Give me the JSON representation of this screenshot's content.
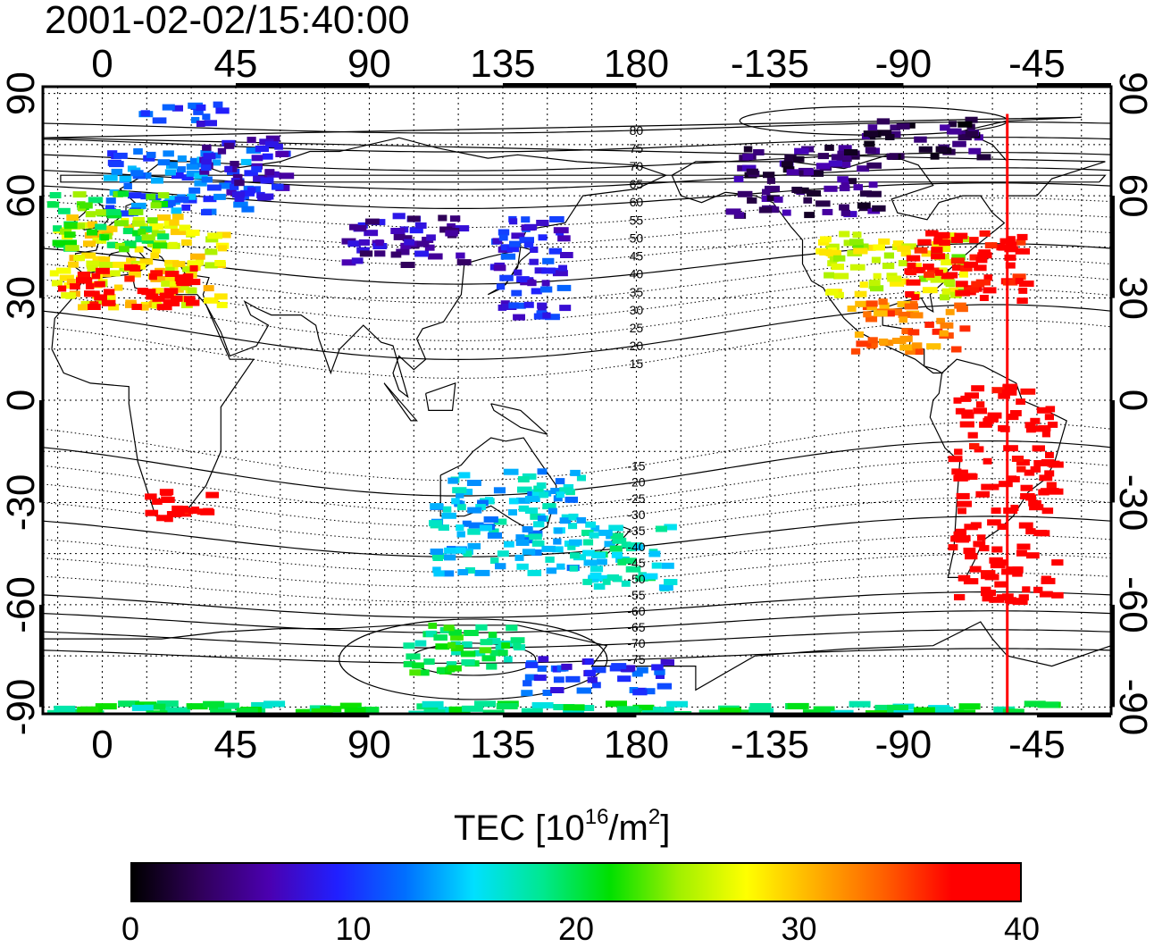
{
  "timestamp": "2001-02-02/15:40:00",
  "axes": {
    "lon_ticks": [
      0,
      45,
      90,
      135,
      180,
      -135,
      -90,
      -45
    ],
    "lon_tick_labels": [
      "0",
      "45",
      "90",
      "135",
      "180",
      "-135",
      "-90",
      "-45"
    ],
    "lat_ticks": [
      90,
      60,
      30,
      0,
      -30,
      -60,
      -90
    ],
    "lat_tick_labels": [
      "90",
      "60",
      "30",
      "0",
      "-30",
      "-60",
      "-90"
    ],
    "lon_range": [
      -20,
      340
    ],
    "lat_range": [
      -92,
      92
    ],
    "grid": true
  },
  "contours": {
    "labels": [
      "80",
      "75",
      "70",
      "65",
      "60",
      "55",
      "50",
      "45",
      "40",
      "35",
      "30",
      "25",
      "20",
      "15",
      "-15",
      "-20",
      "-25",
      "-30",
      "-35",
      "-40",
      "-45",
      "-50",
      "-55",
      "-60",
      "-65",
      "-70",
      "-75"
    ],
    "label_lon": 180
  },
  "terminator_lon": -55,
  "colorbar": {
    "title_main": "TEC  [10",
    "title_exp1": "16",
    "title_unit": "/m",
    "title_exp2": "2",
    "title_close": "]",
    "ticks": [
      "0",
      "10",
      "20",
      "30",
      "40"
    ],
    "range": [
      0,
      40
    ],
    "colors": [
      "#000000",
      "#30005a",
      "#4b00b0",
      "#2020ff",
      "#0070ff",
      "#00e0ff",
      "#00e890",
      "#00e000",
      "#a0f000",
      "#ffff00",
      "#ffb000",
      "#ff6000",
      "#ff0000",
      "#ff0000"
    ]
  },
  "chart_data": {
    "type": "heatmap",
    "xlabel": "",
    "ylabel": "",
    "colorbar_range": [
      0,
      40
    ],
    "regions": [
      {
        "lon": [
          -18,
          40
        ],
        "lat": [
          28,
          55
        ],
        "tec": 28
      },
      {
        "lon": [
          -15,
          30
        ],
        "lat": [
          28,
          40
        ],
        "tec": 39
      },
      {
        "lon": [
          0,
          50
        ],
        "lat": [
          55,
          75
        ],
        "tec": 12
      },
      {
        "lon": [
          -20,
          20
        ],
        "lat": [
          45,
          62
        ],
        "tec": 22
      },
      {
        "lon": [
          30,
          60
        ],
        "lat": [
          60,
          78
        ],
        "tec": 7
      },
      {
        "lon": [
          10,
          35
        ],
        "lat": [
          -35,
          -25
        ],
        "tec": 39
      },
      {
        "lon": [
          130,
          155
        ],
        "lat": [
          25,
          55
        ],
        "tec": 9
      },
      {
        "lon": [
          80,
          120
        ],
        "lat": [
          40,
          55
        ],
        "tec": 6
      },
      {
        "lon": [
          210,
          260
        ],
        "lat": [
          55,
          75
        ],
        "tec": 4
      },
      {
        "lon": [
          240,
          290
        ],
        "lat": [
          30,
          50
        ],
        "tec": 26
      },
      {
        "lon": [
          270,
          310
        ],
        "lat": [
          30,
          50
        ],
        "tec": 38
      },
      {
        "lon": [
          250,
          290
        ],
        "lat": [
          15,
          30
        ],
        "tec": 33
      },
      {
        "lon": [
          285,
          320
        ],
        "lat": [
          -60,
          5
        ],
        "tec": 39
      },
      {
        "lon": [
          160,
          190
        ],
        "lat": [
          -55,
          -35
        ],
        "tec": 17
      },
      {
        "lon": [
          110,
          160
        ],
        "lat": [
          -50,
          -20
        ],
        "tec": 15
      },
      {
        "lon": [
          100,
          140
        ],
        "lat": [
          -80,
          -65
        ],
        "tec": 20
      },
      {
        "lon": [
          140,
          190
        ],
        "lat": [
          -85,
          -75
        ],
        "tec": 10
      },
      {
        "lon": [
          -20,
          320
        ],
        "lat": [
          -92,
          -88
        ],
        "tec": 19
      },
      {
        "lon": [
          255,
          295
        ],
        "lat": [
          72,
          84
        ],
        "tec": 3
      },
      {
        "lon": [
          10,
          40
        ],
        "lat": [
          82,
          88
        ],
        "tec": 10
      }
    ]
  }
}
